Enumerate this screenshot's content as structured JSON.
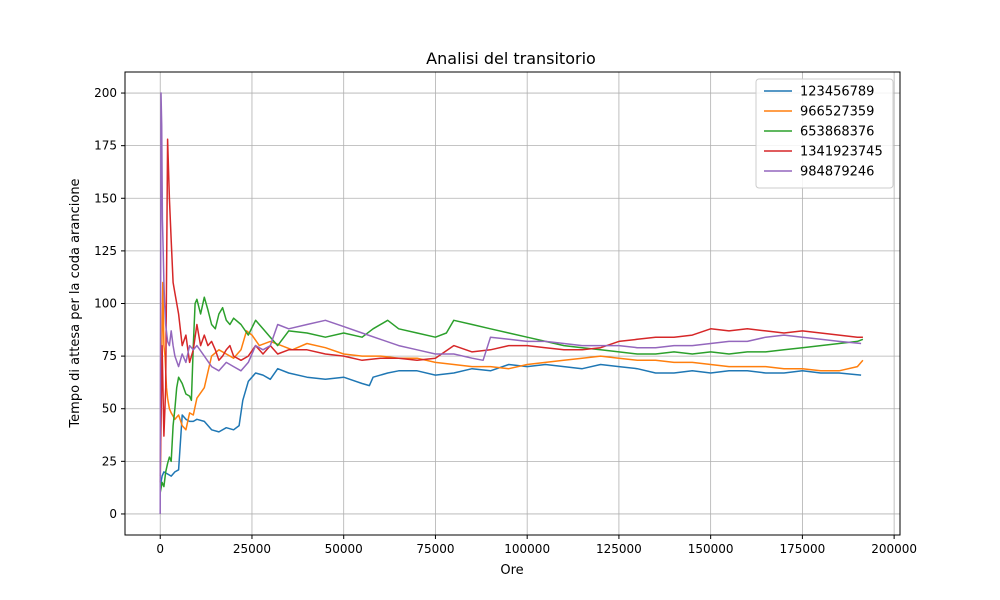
{
  "chart_data": {
    "type": "line",
    "title": "Analisi del transitorio",
    "xlabel": "Ore",
    "ylabel": "Tempo di attesa per la coda arancione",
    "xlim": [
      -9600,
      201600
    ],
    "ylim": [
      -10,
      210
    ],
    "xticks": [
      0,
      25000,
      50000,
      75000,
      100000,
      125000,
      150000,
      175000,
      200000
    ],
    "yticks": [
      0,
      25,
      50,
      75,
      100,
      125,
      150,
      175,
      200
    ],
    "grid": true,
    "legend": "top-right",
    "series": [
      {
        "name": "123456789",
        "color": "#1f77b4",
        "x": [
          0,
          500,
          1000,
          2000,
          3000,
          4000,
          5000,
          6000,
          7000,
          8000,
          9000,
          10000,
          12000,
          14000,
          16000,
          18000,
          20000,
          21500,
          22500,
          24000,
          26000,
          28000,
          30000,
          32000,
          35000,
          40000,
          45000,
          50000,
          55000,
          57000,
          58000,
          62000,
          65000,
          70000,
          75000,
          80000,
          85000,
          90000,
          95000,
          100000,
          105000,
          110000,
          115000,
          120000,
          125000,
          130000,
          135000,
          140000,
          145000,
          150000,
          155000,
          160000,
          165000,
          170000,
          175000,
          180000,
          185000,
          191000
        ],
        "values": [
          13,
          18,
          20,
          19,
          18,
          20,
          21,
          47,
          45,
          44,
          44,
          45,
          44,
          40,
          39,
          41,
          40,
          42,
          54,
          63,
          67,
          66,
          64,
          69,
          67,
          65,
          64,
          65,
          62,
          61,
          65,
          67,
          68,
          68,
          66,
          67,
          69,
          68,
          71,
          70,
          71,
          70,
          69,
          71,
          70,
          69,
          67,
          67,
          68,
          67,
          68,
          68,
          67,
          67,
          68,
          67,
          67,
          66
        ]
      },
      {
        "name": "966527359",
        "color": "#ff7f0e",
        "x": [
          0,
          300,
          700,
          1000,
          1300,
          1700,
          2000,
          2500,
          3000,
          4000,
          5000,
          6000,
          7000,
          8000,
          9000,
          10000,
          12000,
          14000,
          16000,
          18000,
          20000,
          22000,
          23500,
          25000,
          27000,
          30000,
          33000,
          36000,
          40000,
          45000,
          50000,
          55000,
          60000,
          65000,
          70000,
          75000,
          80000,
          85000,
          90000,
          95000,
          100000,
          105000,
          110000,
          115000,
          120000,
          125000,
          130000,
          135000,
          140000,
          145000,
          150000,
          155000,
          160000,
          165000,
          170000,
          175000,
          180000,
          185000,
          190000,
          191500
        ],
        "values": [
          18,
          60,
          110,
          80,
          75,
          60,
          55,
          50,
          48,
          45,
          47,
          42,
          40,
          48,
          47,
          55,
          60,
          75,
          78,
          76,
          74,
          78,
          87,
          85,
          80,
          82,
          80,
          78,
          81,
          79,
          76,
          75,
          75,
          74,
          74,
          72,
          71,
          70,
          70,
          69,
          71,
          72,
          73,
          74,
          75,
          74,
          73,
          73,
          72,
          72,
          71,
          70,
          70,
          70,
          69,
          69,
          68,
          68,
          70,
          73
        ]
      },
      {
        "name": "653868376",
        "color": "#2ca02c",
        "x": [
          0,
          500,
          1000,
          1500,
          2000,
          2500,
          3000,
          3500,
          4000,
          4500,
          5000,
          6000,
          7000,
          8000,
          8500,
          9000,
          9500,
          10000,
          11000,
          12000,
          13000,
          14000,
          15000,
          16000,
          17000,
          18000,
          19000,
          20000,
          22000,
          24000,
          26000,
          28000,
          30000,
          32000,
          35000,
          40000,
          45000,
          50000,
          55000,
          58000,
          62000,
          65000,
          70000,
          75000,
          78000,
          80000,
          85000,
          90000,
          95000,
          100000,
          105000,
          110000,
          115000,
          120000,
          125000,
          130000,
          135000,
          140000,
          145000,
          150000,
          155000,
          160000,
          165000,
          170000,
          175000,
          180000,
          185000,
          190000,
          191500
        ],
        "values": [
          10,
          15,
          13,
          20,
          24,
          27,
          25,
          42,
          50,
          60,
          65,
          62,
          57,
          56,
          54,
          80,
          100,
          102,
          95,
          103,
          97,
          90,
          88,
          95,
          98,
          92,
          90,
          93,
          90,
          85,
          92,
          88,
          84,
          80,
          87,
          86,
          84,
          86,
          84,
          88,
          92,
          88,
          86,
          84,
          86,
          92,
          90,
          88,
          86,
          84,
          82,
          80,
          79,
          78,
          77,
          76,
          76,
          77,
          76,
          77,
          76,
          77,
          77,
          78,
          79,
          80,
          81,
          82,
          83
        ]
      },
      {
        "name": "1341923745",
        "color": "#d62728",
        "x": [
          0,
          500,
          1000,
          1500,
          2000,
          2500,
          3000,
          3500,
          4000,
          5000,
          6000,
          7000,
          8000,
          9000,
          10000,
          11000,
          12000,
          13000,
          14000,
          15000,
          16000,
          17000,
          18000,
          19000,
          20000,
          22000,
          24000,
          26000,
          28000,
          30000,
          32000,
          35000,
          40000,
          45000,
          50000,
          55000,
          60000,
          65000,
          70000,
          75000,
          80000,
          85000,
          90000,
          95000,
          100000,
          105000,
          110000,
          115000,
          120000,
          125000,
          130000,
          135000,
          140000,
          145000,
          150000,
          155000,
          160000,
          165000,
          170000,
          175000,
          180000,
          185000,
          190000,
          191500
        ],
        "values": [
          15,
          80,
          37,
          60,
          178,
          150,
          130,
          110,
          105,
          95,
          80,
          85,
          72,
          78,
          90,
          80,
          85,
          80,
          82,
          78,
          73,
          75,
          78,
          80,
          75,
          73,
          75,
          80,
          76,
          80,
          76,
          78,
          78,
          76,
          75,
          73,
          74,
          74,
          73,
          74,
          80,
          77,
          78,
          80,
          80,
          79,
          78,
          78,
          79,
          82,
          83,
          84,
          84,
          85,
          88,
          87,
          88,
          87,
          86,
          87,
          86,
          85,
          84,
          84
        ]
      },
      {
        "name": "984879246",
        "color": "#9467bd",
        "x": [
          0,
          200,
          400,
          600,
          800,
          1000,
          1200,
          1500,
          2000,
          2500,
          3000,
          3500,
          4000,
          5000,
          6000,
          7000,
          8000,
          9000,
          10000,
          12000,
          14000,
          16000,
          18000,
          20000,
          22000,
          24000,
          26000,
          28000,
          30000,
          32000,
          35000,
          40000,
          45000,
          50000,
          55000,
          60000,
          65000,
          70000,
          75000,
          80000,
          85000,
          88000,
          90000,
          95000,
          100000,
          105000,
          110000,
          115000,
          120000,
          125000,
          130000,
          135000,
          140000,
          145000,
          150000,
          155000,
          160000,
          165000,
          170000,
          175000,
          180000,
          185000,
          191000
        ],
        "values": [
          0,
          200,
          185,
          140,
          125,
          110,
          100,
          90,
          82,
          80,
          87,
          80,
          75,
          70,
          76,
          72,
          80,
          78,
          80,
          75,
          70,
          68,
          72,
          70,
          68,
          72,
          80,
          78,
          80,
          90,
          88,
          90,
          92,
          89,
          86,
          83,
          80,
          78,
          76,
          76,
          74,
          73,
          84,
          83,
          82,
          82,
          81,
          80,
          80,
          80,
          79,
          79,
          80,
          80,
          81,
          82,
          82,
          84,
          85,
          84,
          83,
          82,
          81
        ]
      }
    ]
  }
}
